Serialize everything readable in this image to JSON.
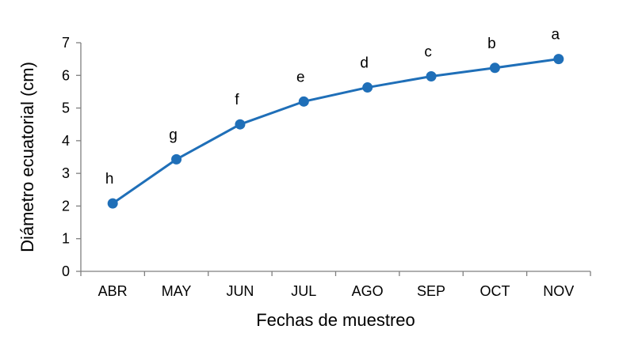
{
  "chart_data": {
    "type": "line",
    "title": "",
    "xlabel": "Fechas de muestreo",
    "ylabel": "Diámetro ecuatorial (cm)",
    "categories": [
      "ABR",
      "MAY",
      "JUN",
      "JUL",
      "AGO",
      "SEP",
      "OCT",
      "NOV"
    ],
    "series": [
      {
        "values": [
          2.08,
          3.43,
          4.5,
          5.2,
          5.63,
          5.97,
          6.23,
          6.5
        ],
        "point_labels": [
          "h",
          "g",
          "f",
          "e",
          "d",
          "c",
          "b",
          "a"
        ],
        "color": "#1f6fb8"
      }
    ],
    "ylim": [
      0,
      7
    ],
    "yticks": [
      "0",
      "1",
      "2",
      "3",
      "4",
      "5",
      "6",
      "7"
    ],
    "grid": false,
    "legend": "none"
  }
}
